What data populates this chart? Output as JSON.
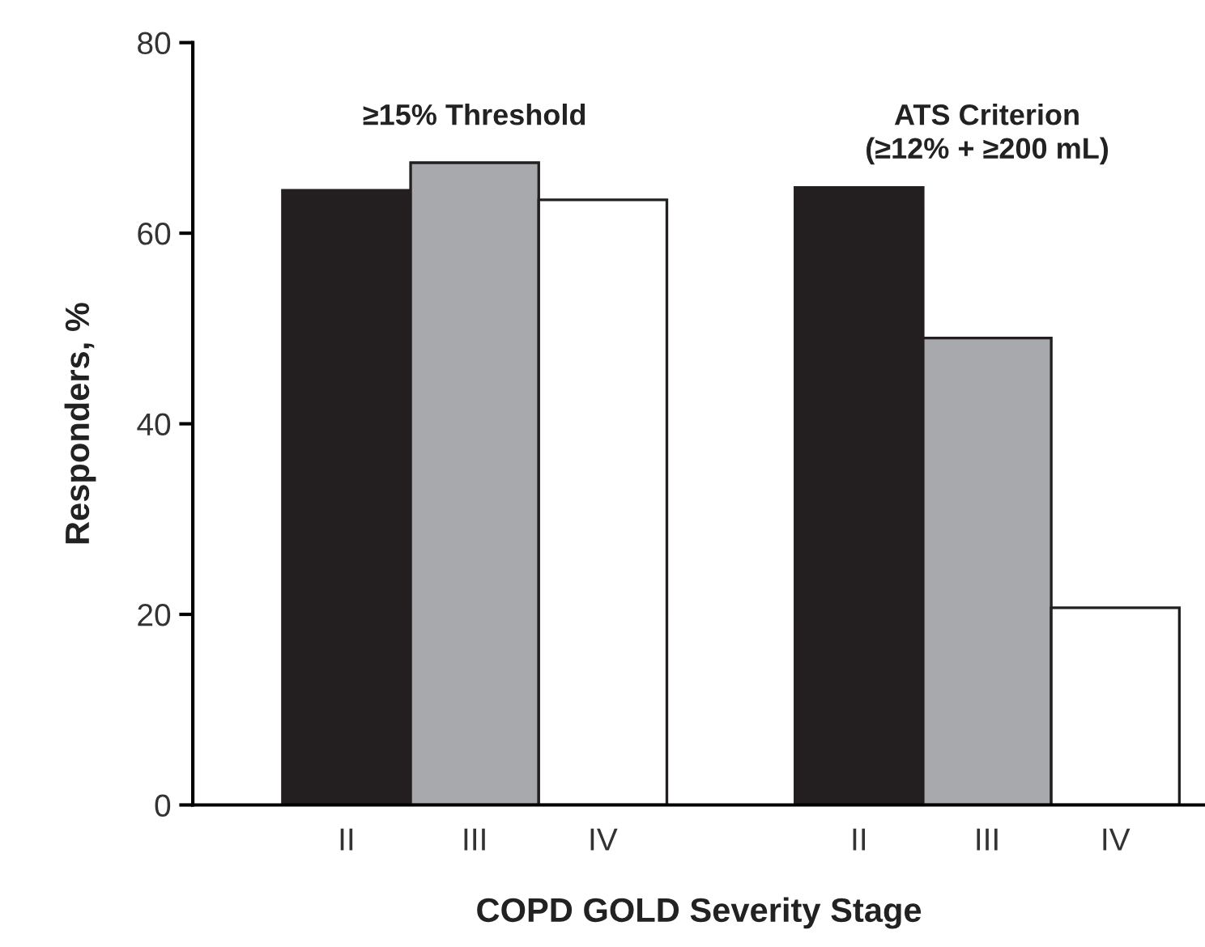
{
  "chart_data": {
    "type": "bar",
    "xlabel": "COPD GOLD Severity Stage",
    "ylabel": "Responders, %",
    "categories": [
      "II",
      "III",
      "IV",
      null,
      "II",
      "III",
      "IV"
    ],
    "values": [
      64.5,
      67.4,
      63.5,
      null,
      64.8,
      49.0,
      20.7
    ],
    "colors": [
      "#231f20",
      "#a7a9ac",
      "#ffffff",
      "#ffffff",
      "#231f20",
      "#a7a9ac",
      "#ffffff"
    ],
    "ylim": [
      0,
      80
    ],
    "yticks": [
      0,
      20,
      40,
      60,
      80
    ],
    "grid": false,
    "legend": false,
    "annotations": [
      "≥15% Threshold",
      "ATS Criterion\n(≥12% + ≥200 mL)"
    ]
  }
}
